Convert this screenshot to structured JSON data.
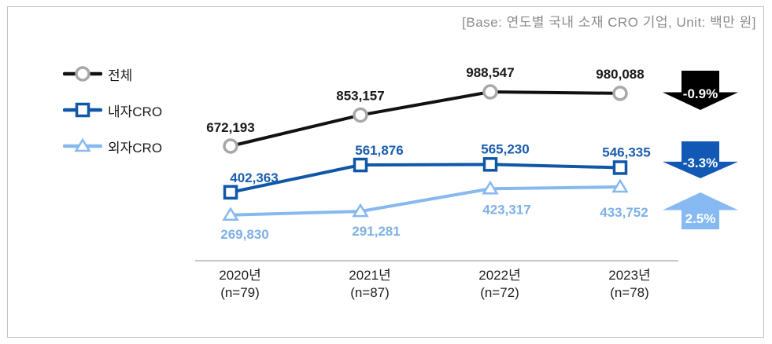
{
  "header": {
    "base_note": "[Base: 연도별 국내 소재 CRO 기업, Unit: 백만 원]"
  },
  "legend": {
    "position": "left",
    "items": [
      {
        "label": "전체",
        "line_color": "#111111",
        "marker": "circle",
        "marker_stroke": "#a8a8a8"
      },
      {
        "label": "내자CRO",
        "line_color": "#1057a8",
        "marker": "square",
        "marker_stroke": "#1057a8"
      },
      {
        "label": "외자CRO",
        "line_color": "#86b9ee",
        "marker": "triangle",
        "marker_stroke": "#86b9ee"
      }
    ]
  },
  "chart_data": {
    "type": "line",
    "categories": [
      "2020년",
      "2021년",
      "2022년",
      "2023년"
    ],
    "category_sublabels": [
      "(n=79)",
      "(n=87)",
      "(n=72)",
      "(n=78)"
    ],
    "series": [
      {
        "name": "전체",
        "color": "#111111",
        "label_color": "#1a1a1a",
        "marker": "circle",
        "marker_stroke": "#a8a8a8",
        "values": [
          672193,
          853157,
          988547,
          980088
        ]
      },
      {
        "name": "내자CRO",
        "color": "#1057a8",
        "label_color": "#1a5dae",
        "marker": "square",
        "marker_stroke": "#1057a8",
        "values": [
          402363,
          561876,
          565230,
          546335
        ]
      },
      {
        "name": "외자CRO",
        "color": "#86b9ee",
        "label_color": "#7fb0e6",
        "marker": "triangle",
        "marker_stroke": "#86b9ee",
        "values": [
          269830,
          291281,
          423317,
          433752
        ]
      }
    ],
    "ylim": [
      200000,
      1100000
    ],
    "grid": false,
    "unit": "백만 원",
    "x_axis_line": true
  },
  "arrows": [
    {
      "label": "-0.9%",
      "direction": "down",
      "color": "#000000"
    },
    {
      "label": "-3.3%",
      "direction": "down",
      "color": "#1159b4"
    },
    {
      "label": "2.5%",
      "direction": "up",
      "color": "#87baf2"
    }
  ]
}
